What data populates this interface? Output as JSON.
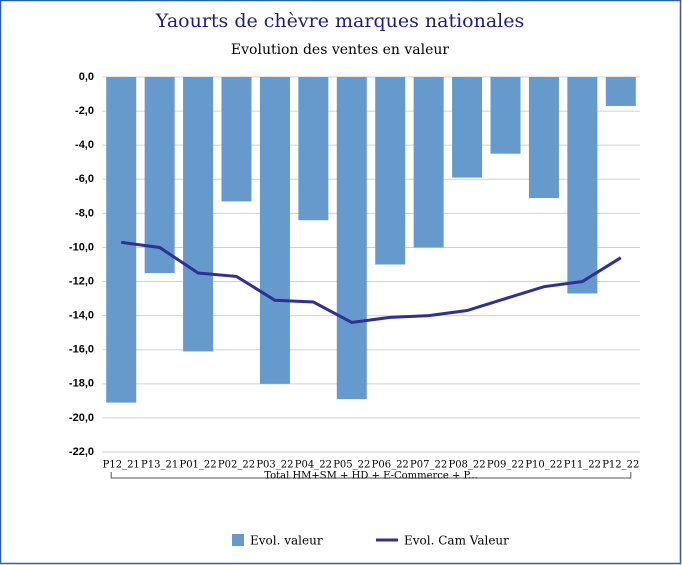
{
  "chart_data": {
    "type": "bar-line",
    "title": "Yaourts de chèvre marques nationales",
    "subtitle": "Evolution des ventes en valeur",
    "categories": [
      "P12_21",
      "P13_21",
      "P01_22",
      "P02_22",
      "P03_22",
      "P04_22",
      "P05_22",
      "P06_22",
      "P07_22",
      "P08_22",
      "P09_22",
      "P10_22",
      "P11_22",
      "P12_22"
    ],
    "group_label": "Total HM+SM + HD + E-Commerce + P...",
    "series": [
      {
        "name": "Evol.  valeur",
        "type": "bar",
        "color": "#6699cc",
        "values": [
          -19.1,
          -11.5,
          -16.1,
          -7.3,
          -18.0,
          -8.4,
          -18.9,
          -11.0,
          -10.0,
          -5.9,
          -4.5,
          -7.1,
          -12.7,
          -1.7
        ]
      },
      {
        "name": "Evol. Cam Valeur",
        "type": "line",
        "color": "#2e3192",
        "values": [
          -9.7,
          -10.0,
          -11.5,
          -11.7,
          -13.1,
          -13.2,
          -14.4,
          -14.1,
          -14.0,
          -13.7,
          -13.0,
          -12.3,
          -12.0,
          -10.6
        ]
      }
    ],
    "ylim": [
      -22,
      0
    ],
    "yticks": [
      {
        "value": 0,
        "label": "0,0"
      },
      {
        "value": -2,
        "label": "-2,0"
      },
      {
        "value": -4,
        "label": "-4,0"
      },
      {
        "value": -6,
        "label": "-6,0"
      },
      {
        "value": -8,
        "label": "-8,0"
      },
      {
        "value": -10,
        "label": "-10,0"
      },
      {
        "value": -12,
        "label": "-12,0"
      },
      {
        "value": -14,
        "label": "-14,0"
      },
      {
        "value": -16,
        "label": "-16,0"
      },
      {
        "value": -18,
        "label": "-18,0"
      },
      {
        "value": -20,
        "label": "-20,0"
      },
      {
        "value": -22,
        "label": "-22,0"
      }
    ],
    "grid": true
  }
}
